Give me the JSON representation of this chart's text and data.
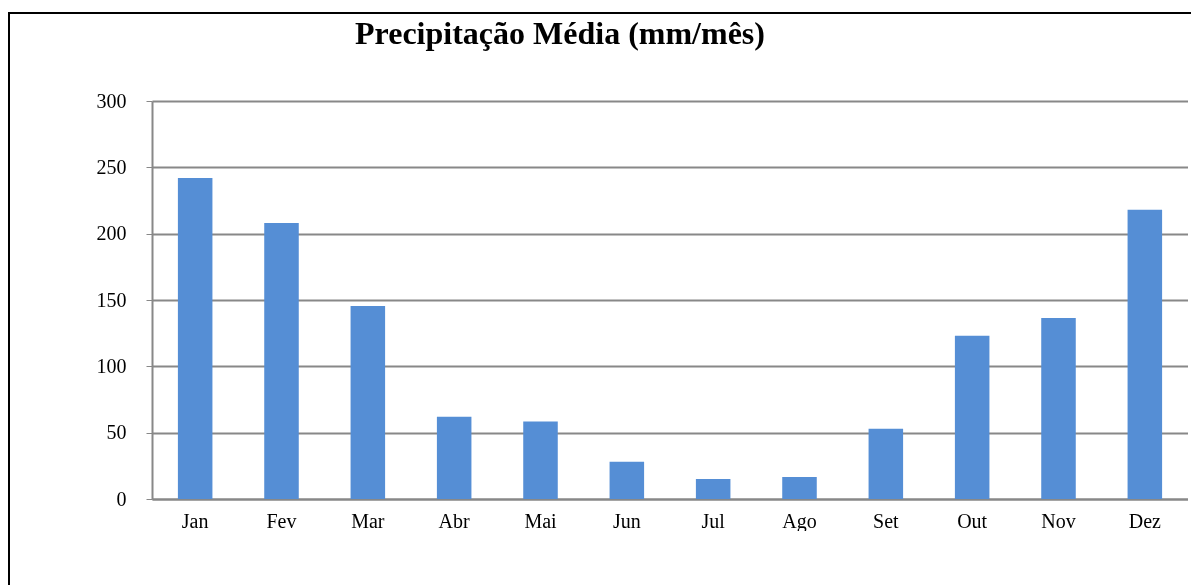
{
  "chart_data": {
    "type": "bar",
    "title": "Precipitação Média (mm/mês)",
    "categories": [
      "Jan",
      "Fev",
      "Mar",
      "Abr",
      "Mai",
      "Jun",
      "Jul",
      "Ago",
      "Set",
      "Out",
      "Nov",
      "Dez"
    ],
    "values": [
      242,
      208,
      145.5,
      62,
      58.5,
      28,
      15,
      16.5,
      53,
      123,
      136.5,
      218
    ],
    "color": "#558ed5",
    "ylim": [
      0,
      300
    ],
    "yticks": [
      0,
      50,
      100,
      150,
      200,
      250,
      300
    ],
    "grid": "y"
  }
}
